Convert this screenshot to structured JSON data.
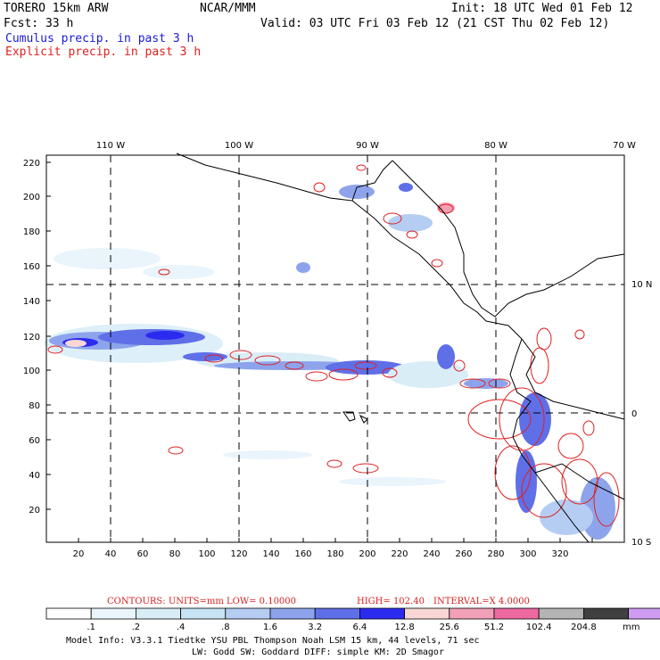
{
  "header": {
    "model": "TORERO  15km ARW",
    "org": "NCAR/MMM",
    "init": "Init: 18 UTC Wed 01 Feb 12",
    "fcst": "Fcst:   33 h",
    "valid": "Valid: 03 UTC Fri 03 Feb 12 (21 CST Thu 02 Feb 12)",
    "cumulus": "Cumulus precip. in past 3 h",
    "explicit": "Explicit precip. in past 3 h"
  },
  "map": {
    "lon_labels": [
      "110 W",
      "100 W",
      "90 W",
      "80 W",
      "70 W"
    ],
    "lat_labels": [
      "10 N",
      "0",
      "10 S"
    ],
    "x_ticks": [
      "20",
      "40",
      "60",
      "80",
      "100",
      "120",
      "140",
      "160",
      "180",
      "200",
      "220",
      "240",
      "260",
      "280",
      "300",
      "320"
    ],
    "y_ticks": [
      "220",
      "200",
      "180",
      "160",
      "140",
      "120",
      "100",
      "80",
      "60",
      "40",
      "20"
    ]
  },
  "contours": {
    "label": "CONTOURS:  UNITS=mm  LOW= 0.10000",
    "high": "HIGH=  102.40",
    "interval": "INTERVAL=X  4.0000"
  },
  "colorbar": {
    "colors": [
      "#ffffff",
      "#eaf4fb",
      "#d9edf7",
      "#c6e4f4",
      "#b5cdf2",
      "#8da4ec",
      "#5f6fe8",
      "#2b2bf0",
      "#f8d6d6",
      "#f2a0b8",
      "#ec6aa0",
      "#b4b4b4",
      "#404040",
      "#cf9cf2"
    ],
    "labels": [
      ".1",
      ".2",
      ".4",
      ".8",
      "1.6",
      "3.2",
      "6.4",
      "12.8",
      "25.6",
      "51.2",
      "102.4",
      "204.8"
    ],
    "unit": "mm"
  },
  "footer": {
    "line1": "Model Info: V3.3.1    Tiedtke YSU PBL  Thompson    Noah LSM  15 km,   44 levels,   71 sec",
    "line2": "LW: Godd SW: Goddard DIFF: simple KM: 2D Smagor"
  }
}
